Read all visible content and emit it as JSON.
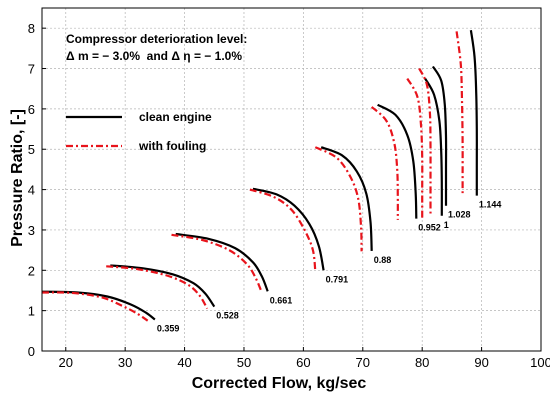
{
  "chart_data": {
    "type": "line",
    "title": "",
    "xlabel": "Corrected Flow, kg/sec",
    "ylabel": "Pressure Ratio, [-]",
    "xlim": [
      16,
      100
    ],
    "ylim": [
      0,
      8.5
    ],
    "xticks": [
      20,
      30,
      40,
      50,
      60,
      70,
      80,
      90,
      100
    ],
    "yticks": [
      0,
      1,
      2,
      3,
      4,
      5,
      6,
      7,
      8
    ],
    "grid": true,
    "legend_position": "upper-left",
    "annotation_lines": [
      "Compressor deterioration level:",
      "Δ m = − 3.0%  and Δ η = − 1.0%"
    ],
    "series": [
      {
        "name": "clean engine",
        "color": "#000000",
        "style": "solid"
      },
      {
        "name": "with fouling",
        "color": "#e8141c",
        "style": "dashdot"
      }
    ],
    "speed_lines": [
      {
        "label": "0.359",
        "clean": [
          [
            16,
            1.47
          ],
          [
            22,
            1.45
          ],
          [
            27,
            1.35
          ],
          [
            31,
            1.15
          ],
          [
            33.5,
            0.95
          ],
          [
            35,
            0.78
          ]
        ],
        "fouling": [
          [
            16,
            1.45
          ],
          [
            21,
            1.44
          ],
          [
            26,
            1.33
          ],
          [
            29.5,
            1.12
          ],
          [
            32,
            0.93
          ],
          [
            33.8,
            0.75
          ]
        ]
      },
      {
        "label": "0.528",
        "clean": [
          [
            27.5,
            2.12
          ],
          [
            33,
            2.05
          ],
          [
            38,
            1.9
          ],
          [
            41.5,
            1.68
          ],
          [
            43.5,
            1.42
          ],
          [
            45,
            1.1
          ]
        ],
        "fouling": [
          [
            26.8,
            2.1
          ],
          [
            32,
            2.03
          ],
          [
            37,
            1.87
          ],
          [
            40.5,
            1.65
          ],
          [
            42.5,
            1.38
          ],
          [
            43.8,
            1.05
          ]
        ]
      },
      {
        "label": "0.661",
        "clean": [
          [
            38.5,
            2.9
          ],
          [
            44,
            2.78
          ],
          [
            48.5,
            2.55
          ],
          [
            51.5,
            2.2
          ],
          [
            53,
            1.85
          ],
          [
            54,
            1.48
          ]
        ],
        "fouling": [
          [
            37.8,
            2.88
          ],
          [
            43,
            2.75
          ],
          [
            47.5,
            2.5
          ],
          [
            50.5,
            2.15
          ],
          [
            52,
            1.8
          ],
          [
            53,
            1.45
          ]
        ]
      },
      {
        "label": "0.791",
        "clean": [
          [
            51.5,
            4.02
          ],
          [
            55.5,
            3.88
          ],
          [
            58.5,
            3.6
          ],
          [
            61,
            3.15
          ],
          [
            62.6,
            2.6
          ],
          [
            63.4,
            2.0
          ]
        ],
        "fouling": [
          [
            51,
            4.0
          ],
          [
            55,
            3.82
          ],
          [
            58,
            3.5
          ],
          [
            60.2,
            3.0
          ],
          [
            61.6,
            2.5
          ],
          [
            62,
            1.97
          ]
        ]
      },
      {
        "label": "0.88",
        "clean": [
          [
            63,
            5.05
          ],
          [
            66.5,
            4.85
          ],
          [
            69,
            4.45
          ],
          [
            70.6,
            3.9
          ],
          [
            71.3,
            3.2
          ],
          [
            71.5,
            2.48
          ]
        ],
        "fouling": [
          [
            62,
            5.05
          ],
          [
            65.5,
            4.8
          ],
          [
            67.8,
            4.35
          ],
          [
            69.2,
            3.8
          ],
          [
            69.7,
            3.1
          ],
          [
            69.8,
            2.47
          ]
        ]
      },
      {
        "label": "0.952",
        "clean": [
          [
            72.5,
            6.1
          ],
          [
            75.5,
            5.85
          ],
          [
            77.5,
            5.35
          ],
          [
            78.5,
            4.7
          ],
          [
            78.9,
            3.9
          ],
          [
            79,
            3.28
          ]
        ],
        "fouling": [
          [
            71.5,
            6.05
          ],
          [
            74,
            5.7
          ],
          [
            75.3,
            5.15
          ],
          [
            75.8,
            4.5
          ],
          [
            75.9,
            3.8
          ],
          [
            75.9,
            3.25
          ]
        ]
      },
      {
        "label": "1",
        "clean": [
          [
            80.5,
            6.75
          ],
          [
            82,
            6.35
          ],
          [
            82.9,
            5.7
          ],
          [
            83.2,
            4.95
          ],
          [
            83.3,
            4.2
          ],
          [
            83.3,
            3.35
          ]
        ],
        "fouling": [
          [
            77.5,
            6.75
          ],
          [
            79.2,
            6.3
          ],
          [
            79.8,
            5.6
          ],
          [
            80,
            4.8
          ],
          [
            80,
            4.0
          ],
          [
            80,
            3.3
          ]
        ]
      },
      {
        "label": "1.028",
        "clean": [
          [
            81.8,
            7.05
          ],
          [
            83.2,
            6.7
          ],
          [
            83.8,
            6.1
          ],
          [
            84,
            5.3
          ],
          [
            84,
            4.5
          ],
          [
            84,
            3.6
          ]
        ],
        "fouling": [
          [
            79.5,
            7.0
          ],
          [
            80.8,
            6.6
          ],
          [
            81.3,
            5.9
          ],
          [
            81.4,
            5.1
          ],
          [
            81.4,
            4.2
          ],
          [
            81.4,
            3.35
          ]
        ]
      },
      {
        "label": "1.144",
        "clean": [
          [
            88.2,
            7.95
          ],
          [
            88.8,
            7.3
          ],
          [
            89.1,
            6.4
          ],
          [
            89.2,
            5.5
          ],
          [
            89.2,
            4.6
          ],
          [
            89.2,
            3.85
          ]
        ],
        "fouling": [
          [
            85.8,
            7.92
          ],
          [
            86.5,
            7.1
          ],
          [
            86.7,
            6.2
          ],
          [
            86.8,
            5.2
          ],
          [
            86.8,
            4.3
          ],
          [
            86.8,
            3.85
          ]
        ]
      }
    ]
  }
}
